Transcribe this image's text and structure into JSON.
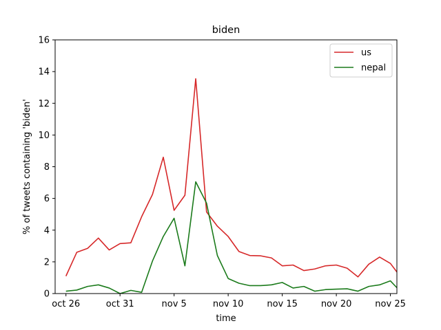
{
  "chart_data": {
    "type": "line",
    "title": "biden",
    "xlabel": "time",
    "ylabel": "% of tweets containing 'biden'",
    "ylim": [
      0,
      16
    ],
    "yticks": [
      0,
      2,
      4,
      6,
      8,
      10,
      12,
      14,
      16
    ],
    "xlim": [
      25.0,
      56.6
    ],
    "xtick_positions": [
      26,
      31,
      36,
      41,
      46,
      51,
      56
    ],
    "xtick_labels": [
      "oct 26",
      "oct 31",
      "nov 5",
      "nov 10",
      "nov 15",
      "nov 20",
      "nov 25"
    ],
    "legend_position": "top-right",
    "x": [
      26,
      27,
      28,
      29,
      30,
      31,
      32,
      33,
      34,
      35,
      36,
      37,
      38,
      39,
      40,
      41,
      42,
      43,
      44,
      45,
      46,
      47,
      48,
      49,
      50,
      51,
      52,
      53,
      54,
      55,
      56,
      57
    ],
    "series": [
      {
        "name": "us",
        "color": "#d62728",
        "values": [
          1.1,
          2.6,
          2.85,
          3.5,
          2.75,
          3.15,
          3.2,
          4.85,
          6.25,
          8.6,
          5.25,
          6.2,
          13.55,
          5.15,
          4.25,
          3.6,
          2.65,
          2.4,
          2.38,
          2.25,
          1.75,
          1.8,
          1.45,
          1.55,
          1.75,
          1.8,
          1.6,
          1.05,
          1.85,
          2.3,
          1.9,
          1.0
        ]
      },
      {
        "name": "nepal",
        "color": "#1a7a1a",
        "values": [
          0.15,
          0.22,
          0.45,
          0.55,
          0.35,
          0.0,
          0.2,
          0.08,
          2.05,
          3.6,
          4.75,
          1.75,
          7.05,
          5.7,
          2.4,
          0.95,
          0.65,
          0.5,
          0.5,
          0.55,
          0.7,
          0.35,
          0.45,
          0.15,
          0.25,
          0.28,
          0.3,
          0.15,
          0.45,
          0.55,
          0.8,
          0.08
        ]
      }
    ]
  }
}
